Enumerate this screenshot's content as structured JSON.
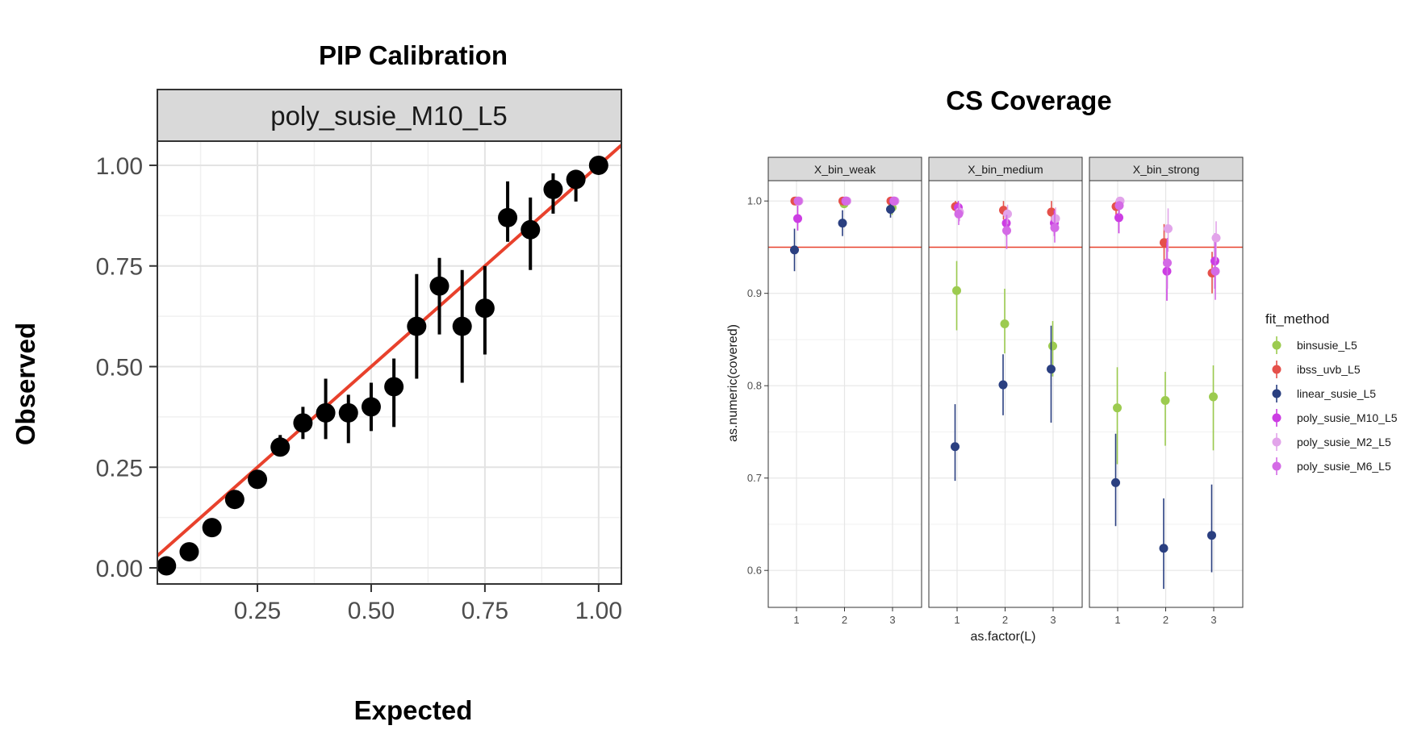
{
  "chart_data": [
    {
      "type": "scatter",
      "title": "PIP Calibration",
      "panel": "poly_susie_M10_L5",
      "xlabel": "Expected",
      "ylabel": "Observed",
      "xlim": [
        0.03,
        1.05
      ],
      "ylim": [
        -0.04,
        1.06
      ],
      "x_ticks": [
        "0.25",
        "0.50",
        "0.75",
        "1.00"
      ],
      "y_ticks": [
        "0.00",
        "0.25",
        "0.50",
        "0.75",
        "1.00"
      ],
      "grid": true,
      "reference_line": {
        "slope": 1,
        "intercept": 0,
        "color": "#e8412c"
      },
      "point_color": "#000000",
      "points": [
        {
          "x": 0.05,
          "y": 0.005,
          "lo": 0.005,
          "hi": 0.005
        },
        {
          "x": 0.1,
          "y": 0.04,
          "lo": 0.04,
          "hi": 0.04
        },
        {
          "x": 0.15,
          "y": 0.1,
          "lo": 0.1,
          "hi": 0.1
        },
        {
          "x": 0.2,
          "y": 0.17,
          "lo": 0.17,
          "hi": 0.17
        },
        {
          "x": 0.25,
          "y": 0.22,
          "lo": 0.22,
          "hi": 0.22
        },
        {
          "x": 0.3,
          "y": 0.3,
          "lo": 0.28,
          "hi": 0.33
        },
        {
          "x": 0.35,
          "y": 0.36,
          "lo": 0.32,
          "hi": 0.4
        },
        {
          "x": 0.4,
          "y": 0.385,
          "lo": 0.32,
          "hi": 0.47
        },
        {
          "x": 0.45,
          "y": 0.385,
          "lo": 0.31,
          "hi": 0.43
        },
        {
          "x": 0.5,
          "y": 0.4,
          "lo": 0.34,
          "hi": 0.46
        },
        {
          "x": 0.55,
          "y": 0.45,
          "lo": 0.35,
          "hi": 0.52
        },
        {
          "x": 0.6,
          "y": 0.6,
          "lo": 0.47,
          "hi": 0.73
        },
        {
          "x": 0.65,
          "y": 0.7,
          "lo": 0.58,
          "hi": 0.77
        },
        {
          "x": 0.7,
          "y": 0.6,
          "lo": 0.46,
          "hi": 0.74
        },
        {
          "x": 0.75,
          "y": 0.645,
          "lo": 0.53,
          "hi": 0.75
        },
        {
          "x": 0.8,
          "y": 0.87,
          "lo": 0.81,
          "hi": 0.96
        },
        {
          "x": 0.85,
          "y": 0.84,
          "lo": 0.74,
          "hi": 0.92
        },
        {
          "x": 0.9,
          "y": 0.94,
          "lo": 0.88,
          "hi": 0.98
        },
        {
          "x": 0.95,
          "y": 0.965,
          "lo": 0.91,
          "hi": 0.97
        },
        {
          "x": 1.0,
          "y": 1.0,
          "lo": 1.0,
          "hi": 1.0
        }
      ]
    },
    {
      "type": "scatter",
      "title": "CS Coverage",
      "xlabel": "as.factor(L)",
      "ylabel": "as.numeric(covered)",
      "categories": [
        "1",
        "2",
        "3"
      ],
      "y_ticks": [
        "0.6",
        "0.7",
        "0.8",
        "0.9",
        "1.0"
      ],
      "ylim": [
        0.56,
        1.022
      ],
      "grid": true,
      "reference_line": {
        "y": 0.95,
        "color": "#e8412c"
      },
      "legend": {
        "title": "fit_method",
        "placement": "right"
      },
      "facets": [
        "X_bin_weak",
        "X_bin_medium",
        "X_bin_strong"
      ],
      "series": [
        {
          "name": "binsusie_L5",
          "color": "#9ccb4f",
          "dodge": -0.0,
          "values": {
            "X_bin_weak": [
              [
                1.0,
                1.0,
                1.0
              ],
              [
                0.997,
                0.993,
                1.0
              ],
              [
                0.993,
                0.985,
                1.0
              ]
            ],
            "X_bin_medium": [
              [
                0.903,
                0.86,
                0.935
              ],
              [
                0.867,
                0.835,
                0.905
              ],
              [
                0.843,
                0.81,
                0.87
              ]
            ],
            "X_bin_strong": [
              [
                0.776,
                0.715,
                0.82
              ],
              [
                0.784,
                0.735,
                0.815
              ],
              [
                0.788,
                0.73,
                0.822
              ]
            ]
          }
        },
        {
          "name": "ibss_uvb_L5",
          "color": "#e5504a",
          "values": {
            "X_bin_weak": [
              [
                1.0,
                1.0,
                1.0
              ],
              [
                1.0,
                1.0,
                1.0
              ],
              [
                1.0,
                1.0,
                1.0
              ]
            ],
            "X_bin_medium": [
              [
                0.994,
                0.985,
                1.0
              ],
              [
                0.99,
                0.98,
                1.0
              ],
              [
                0.988,
                0.975,
                1.0
              ]
            ],
            "X_bin_strong": [
              [
                0.994,
                0.985,
                1.0
              ],
              [
                0.955,
                0.93,
                0.975
              ],
              [
                0.922,
                0.9,
                0.945
              ]
            ]
          }
        },
        {
          "name": "linear_susie_L5",
          "color": "#2a3f80",
          "values": {
            "X_bin_weak": [
              [
                0.947,
                0.924,
                0.97
              ],
              [
                0.976,
                0.962,
                0.99
              ],
              [
                0.991,
                0.982,
                0.998
              ]
            ],
            "X_bin_medium": [
              [
                0.734,
                0.697,
                0.78
              ],
              [
                0.801,
                0.768,
                0.834
              ],
              [
                0.818,
                0.76,
                0.865
              ]
            ],
            "X_bin_strong": [
              [
                0.695,
                0.648,
                0.748
              ],
              [
                0.624,
                0.58,
                0.678
              ],
              [
                0.638,
                0.598,
                0.693
              ]
            ]
          }
        },
        {
          "name": "poly_susie_M10_L5",
          "color": "#cc3de3",
          "values": {
            "X_bin_weak": [
              [
                0.981,
                0.968,
                0.995
              ],
              [
                1.0,
                1.0,
                1.0
              ],
              [
                1.0,
                1.0,
                1.0
              ]
            ],
            "X_bin_medium": [
              [
                0.993,
                0.983,
                1.0
              ],
              [
                0.976,
                0.962,
                0.99
              ],
              [
                0.976,
                0.962,
                0.99
              ]
            ],
            "X_bin_strong": [
              [
                0.982,
                0.965,
                0.995
              ],
              [
                0.924,
                0.892,
                0.955
              ],
              [
                0.935,
                0.905,
                0.965
              ]
            ]
          }
        },
        {
          "name": "poly_susie_M2_L5",
          "color": "#e2a4ea",
          "values": {
            "X_bin_weak": [
              [
                1.0,
                1.0,
                1.0
              ],
              [
                1.0,
                1.0,
                1.0
              ],
              [
                1.0,
                1.0,
                1.0
              ]
            ],
            "X_bin_medium": [
              [
                0.988,
                0.978,
                0.998
              ],
              [
                0.986,
                0.975,
                0.996
              ],
              [
                0.981,
                0.968,
                0.993
              ]
            ],
            "X_bin_strong": [
              [
                1.0,
                1.0,
                1.0
              ],
              [
                0.97,
                0.945,
                0.992
              ],
              [
                0.96,
                0.935,
                0.978
              ]
            ]
          }
        },
        {
          "name": "poly_susie_M6_L5",
          "color": "#d46ae6",
          "values": {
            "X_bin_weak": [
              [
                1.0,
                1.0,
                1.0
              ],
              [
                1.0,
                1.0,
                1.0
              ],
              [
                1.0,
                1.0,
                1.0
              ]
            ],
            "X_bin_medium": [
              [
                0.986,
                0.974,
                0.996
              ],
              [
                0.968,
                0.948,
                0.985
              ],
              [
                0.971,
                0.955,
                0.987
              ]
            ],
            "X_bin_strong": [
              [
                0.995,
                0.985,
                1.0
              ],
              [
                0.933,
                0.905,
                0.96
              ],
              [
                0.924,
                0.893,
                0.955
              ]
            ]
          }
        }
      ]
    }
  ]
}
